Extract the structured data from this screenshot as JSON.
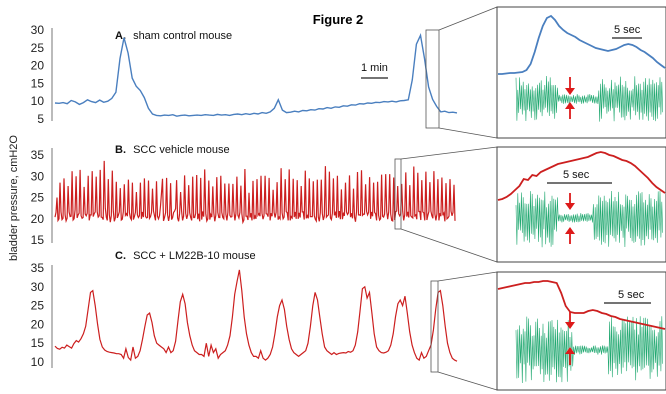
{
  "figure_title": "Figure 2",
  "y_axis_label": "bladder pressure, cmH2O",
  "colors": {
    "blue": "#4a7fbf",
    "red": "#cc1f1f",
    "green": "#20a870",
    "arrow": "#dd1a1a",
    "frame": "#444444"
  },
  "chart_data": [
    {
      "type": "line",
      "panel_letter": "A.",
      "title": "sham control mouse",
      "yticks": [
        30,
        25,
        20,
        15,
        10,
        5
      ],
      "ylim": [
        5,
        30
      ],
      "scale_bar_label": "1 min",
      "inset_scale_bar_label": "5 sec",
      "series": [
        {
          "values": [
            9.5,
            9.4,
            9.6,
            9.3,
            10.2,
            9.8,
            9.1,
            9.6,
            10.4,
            9.9,
            9.6,
            10.3,
            9.7,
            10.0,
            10.8,
            12.5,
            22.0,
            27.8,
            23.5,
            16.5,
            14.2,
            13.0,
            11.0,
            8.0,
            6.4,
            6.0,
            5.9,
            6.1,
            6.0,
            6.2,
            5.8,
            6.0,
            6.1,
            5.9,
            6.0,
            6.1,
            6.0,
            6.2,
            6.1,
            6.0,
            6.3,
            6.1,
            6.2,
            6.0,
            6.3,
            6.4,
            6.2,
            6.5,
            6.3,
            6.6,
            6.4,
            6.8,
            6.6,
            7.0,
            8.0,
            10.4,
            7.5,
            6.8,
            6.9,
            7.2,
            7.0,
            7.4,
            7.3,
            7.6,
            7.5,
            7.9,
            7.8,
            8.2,
            8.0,
            8.4,
            8.3,
            8.7,
            8.6,
            9.0,
            8.9,
            9.3,
            9.2,
            9.5,
            9.4,
            9.7,
            9.6,
            9.9,
            9.8,
            10.0,
            9.8,
            10.1,
            10.2,
            10.4,
            16.0,
            26.0,
            28.5,
            22.0,
            14.0,
            10.5,
            8.5,
            7.0,
            7.2,
            6.8,
            6.9,
            6.7
          ]
        }
      ]
    },
    {
      "type": "line",
      "panel_letter": "B.",
      "title": "SCC vehicle mouse",
      "yticks": [
        35,
        30,
        25,
        20,
        15
      ],
      "ylim": [
        15,
        35
      ],
      "inset_scale_bar_label": "5 sec",
      "series": [
        {
          "values": [
            20.4,
            21.5,
            25.0,
            19.6,
            20.0,
            28.5,
            21.6,
            19.8,
            20.1,
            29.5,
            20.9,
            19.5,
            20.1,
            27.7,
            21.6,
            20.5,
            20.6,
            31.2,
            19.7,
            20.0,
            22.1,
            30.0,
            20.2,
            20.9,
            21.3,
            31.5,
            20.7,
            20.1,
            20.3,
            27.5,
            21.1,
            20.7,
            21.3,
            30.1,
            19.6,
            20.9,
            20.9,
            31.2,
            20.5,
            21.2,
            21.6,
            29.9,
            21.6,
            20.4,
            20.7,
            31.5,
            20.4,
            20.3,
            19.8,
            33.6,
            22.5,
            20.4,
            19.6,
            29.3,
            21.0,
            19.2,
            20.7,
            31.3,
            21.8,
            19.4,
            20.2,
            28.7,
            20.2,
            20.8,
            21.6,
            27.2,
            19.7,
            19.9,
            21.6,
            28.1,
            20.8,
            21.2,
            20.6,
            29.2,
            21.5,
            20.2,
            19.8,
            28.5,
            19.8,
            20.5,
            21.5,
            26.3,
            20.9,
            20.3,
            20.7,
            28.5,
            20.0,
            21.6,
            20.4,
            29.5,
            20.6,
            20.2,
            20.3,
            29.0,
            20.1,
            20.5,
            21.5,
            27.1,
            21.8,
            20.7,
            19.6,
            28.8,
            20.6,
            20.0,
            20.7,
            23.0,
            26.1,
            29.4,
            19.5,
            20.3,
            21.4,
            29.6,
            20.9,
            19.5,
            20.8,
            28.4,
            19.8,
            20.3,
            21.5,
            21.8,
            22.4,
            29.1,
            20.2,
            19.4,
            21.2,
            26.3,
            21.8,
            19.6,
            20.6,
            30.2,
            21.3,
            20.0,
            20.9,
            27.9,
            21.4,
            20.3,
            19.6,
            29.9,
            20.3,
            20.3,
            21.3,
            30.3,
            19.9,
            21.2,
            19.4,
            29.6,
            19.8,
            21.7,
            20.5,
            31.6,
            21.2,
            19.5,
            20.0,
            29.0,
            19.8,
            21.0,
            20.4,
            27.6,
            21.4,
            19.4,
            20.8,
            29.8,
            21.5,
            20.3,
            20.3,
            30.1,
            21.5,
            20.3,
            20.0,
            28.3,
            21.0,
            19.6,
            21.5,
            28.3,
            20.8,
            20.4,
            20.5,
            28.2,
            21.8,
            19.6,
            21.2,
            29.9,
            20.8,
            20.2,
            21.5,
            27.8,
            21.1,
            19.2,
            19.7,
            31.7,
            20.6,
            20.6,
            19.7,
            26.1,
            20.3,
            21.3,
            19.6,
            28.9,
            19.9,
            20.6,
            20.0,
            29.3,
            20.8,
            21.2,
            20.6,
            30.1,
            21.3,
            19.9,
            20.7,
            30.1,
            21.2,
            21.1,
            20.5,
            29.6,
            19.6,
            21.3,
            20.6,
            26.8,
            21.5,
            20.3,
            21.5,
            28.6,
            19.8,
            20.4,
            20.0,
            31.9,
            21.4,
            20.0,
            20.4,
            29.3,
            21.7,
            21.4,
            19.6,
            31.6,
            19.6,
            20.5,
            20.2,
            29.4,
            20.4,
            21.6,
            20.0,
            29.1,
            20.0,
            21.4,
            20.3,
            27.7,
            21.6,
            21.6,
            19.8,
            31.3,
            20.1,
            20.7,
            20.1,
            29.5,
            20.5,
            20.5,
            20.5,
            28.8,
            20.7,
            19.9,
            19.5,
            29.2,
            20.4,
            19.4,
            21.4,
            29.2,
            21.3,
            19.7,
            20.6,
            32.4,
            20.4,
            20.7,
            20.9,
            31.1,
            20.2,
            19.8,
            21.3,
            29.5,
            20.8,
            21.4,
            20.2,
            30.1,
            20.3,
            21.8,
            19.9,
            26.9,
            19.9,
            21.2,
            20.7,
            28.5,
            21.6,
            21.0,
            21.4,
            30.2,
            20.4,
            21.3,
            20.1,
            27.1,
            20.4,
            19.3,
            21.6,
            31.0,
            20.9,
            20.9,
            20.8,
            31.4,
            20.8,
            21.1,
            21.1,
            28.1,
            21.7,
            20.9,
            21.5,
            29.8,
            20.0,
            21.6,
            20.6,
            28.5,
            21.5,
            21.2,
            19.6,
            28.7,
            20.8,
            19.7,
            20.0,
            30.4,
            20.6,
            20.4,
            21.1,
            30.5,
            21.8,
            19.9,
            21.6,
            30.5,
            21.1,
            19.6,
            19.5,
            29.7,
            19.7,
            21.7,
            21.8,
            27.7,
            21.2,
            20.7,
            21.2,
            28.2,
            21.8,
            19.6,
            20.9,
            30.9,
            20.5,
            21.6,
            20.3,
            27.9,
            20.7,
            20.4,
            20.2,
            32.3,
            20.7,
            20.9,
            19.9,
            30.8,
            21.7,
            21.7,
            19.7,
            29.1,
            21.6,
            21.4,
            19.6,
            31.1,
            19.7,
            20.8,
            21.7,
            28.6,
            21.8,
            20.7,
            20.1,
            31.2,
            21.1,
            19.6,
            21.1,
            29.3,
            19.6,
            21.3,
            20.6,
            29.7,
            20.8,
            21.3,
            19.4,
            28.4,
            20.0,
            20.2,
            20.6,
            29.3,
            21.8,
            20.7,
            21.5,
            28.0,
            19.5
          ]
        }
      ]
    },
    {
      "type": "line",
      "panel_letter": "C.",
      "title": "SCC + LM22B-10 mouse",
      "yticks": [
        35,
        30,
        25,
        20,
        15,
        10
      ],
      "ylim": [
        10,
        35
      ],
      "inset_scale_bar_label": "5 sec",
      "series": [
        {
          "values": [
            14.2,
            13.6,
            13.4,
            13.9,
            13.7,
            14.5,
            14.1,
            13.7,
            14.9,
            15.7,
            15.3,
            16.2,
            17.5,
            19.5,
            24.0,
            28.5,
            29.0,
            25.0,
            20.0,
            16.0,
            14.0,
            13.2,
            12.8,
            12.6,
            12.5,
            12.4,
            12.2,
            12.2,
            12.0,
            11.0,
            13.5,
            11.2,
            10.5,
            14.0,
            11.0,
            11.5,
            13.0,
            16.0,
            19.5,
            22.5,
            23.0,
            20.5,
            17.0,
            15.0,
            14.5,
            14.0,
            13.5,
            12.5,
            14.0,
            12.5,
            13.0,
            15.5,
            21.0,
            26.0,
            28.0,
            25.5,
            20.5,
            17.0,
            14.5,
            13.0,
            12.5,
            12.0,
            12.0,
            11.5,
            15.0,
            11.5,
            14.5,
            12.5,
            13.5,
            11.0,
            12.0,
            12.5,
            13.0,
            14.5,
            17.0,
            22.0,
            28.0,
            31.5,
            34.5,
            29.0,
            22.0,
            17.5,
            14.5,
            12.5,
            11.5,
            11.5,
            11.0,
            13.0,
            11.0,
            10.5,
            11.0,
            12.0,
            14.0,
            17.5,
            22.0,
            25.0,
            26.5,
            24.0,
            19.5,
            16.0,
            13.5,
            12.5,
            12.0,
            11.5,
            12.0,
            12.5,
            13.0,
            15.0,
            19.5,
            25.0,
            28.5,
            26.5,
            22.0,
            17.5,
            14.0,
            13.0,
            12.5,
            12.0,
            12.5,
            12.0,
            12.3,
            12.4,
            12.5,
            12.4,
            12.8,
            12.6,
            13.0,
            14.5,
            18.0,
            23.5,
            29.5,
            30.0,
            27.0,
            28.5,
            23.0,
            17.5,
            14.0,
            13.0,
            12.5,
            12.4,
            12.6,
            13.0,
            14.5,
            17.5,
            22.0,
            25.5,
            26.5,
            25.0,
            27.5,
            23.0,
            18.0,
            14.5,
            12.5,
            11.0,
            10.5,
            12.5,
            11.0,
            11.5,
            13.0,
            14.5,
            18.5,
            24.0,
            28.5,
            29.0,
            25.0,
            19.5,
            15.0,
            12.5,
            11.0,
            10.5,
            10.2
          ]
        }
      ]
    }
  ]
}
